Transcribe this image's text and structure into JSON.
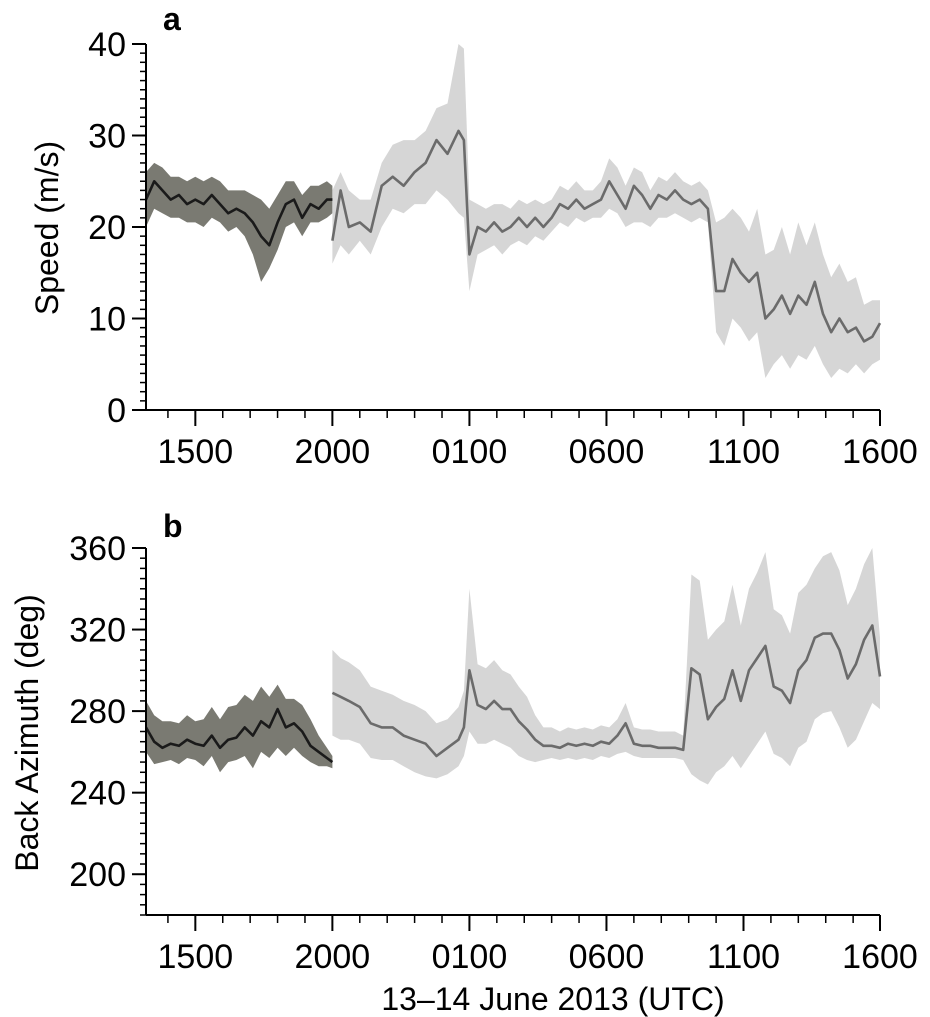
{
  "figure": {
    "xlabel": "13–14 June 2013 (UTC)"
  },
  "chart_data": [
    {
      "type": "line",
      "panel_label": "a",
      "ylabel": "Speed (m/s)",
      "ylim": [
        0,
        40
      ],
      "yticks": [
        0,
        10,
        20,
        30,
        40
      ],
      "xlim": [
        13.2,
        39.98
      ],
      "xticks": [
        15,
        20,
        25,
        30,
        35,
        40
      ],
      "xtick_labels": [
        "1500",
        "2000",
        "0100",
        "0600",
        "1100",
        "1600"
      ],
      "x_units": "hours since 00:00 UTC 13 June 2013",
      "grid": false,
      "series": [
        {
          "color": "#1a1a1a",
          "band_color": "#7a7a72",
          "x": [
            13.2,
            13.5,
            13.8,
            14.1,
            14.4,
            14.7,
            15.0,
            15.3,
            15.6,
            15.9,
            16.2,
            16.5,
            16.8,
            17.1,
            17.4,
            17.7,
            18.0,
            18.3,
            18.6,
            18.9,
            19.2,
            19.5,
            19.8,
            20.0
          ],
          "y": [
            23.0,
            25.0,
            24.0,
            23.0,
            23.5,
            22.5,
            23.0,
            22.5,
            23.5,
            22.5,
            21.5,
            22.0,
            21.5,
            20.5,
            19.0,
            18.0,
            20.5,
            22.5,
            23.0,
            21.0,
            22.5,
            22.0,
            23.0,
            23.0
          ],
          "lower": [
            20.0,
            22.0,
            21.5,
            21.0,
            21.0,
            20.5,
            20.5,
            20.0,
            21.0,
            20.5,
            19.5,
            20.0,
            19.0,
            17.0,
            14.0,
            15.5,
            17.5,
            20.0,
            20.5,
            19.0,
            20.5,
            20.5,
            21.0,
            21.5
          ],
          "upper": [
            26.0,
            27.0,
            26.5,
            25.5,
            25.5,
            25.0,
            25.5,
            25.0,
            25.5,
            25.0,
            24.0,
            24.0,
            24.0,
            23.5,
            23.0,
            22.0,
            23.5,
            25.0,
            25.0,
            23.5,
            24.5,
            24.5,
            25.0,
            24.5
          ]
        },
        {
          "color": "#6b6b6b",
          "band_color": "#d6d6d6",
          "x": [
            20.0,
            20.3,
            20.6,
            21.0,
            21.4,
            21.8,
            22.2,
            22.6,
            23.0,
            23.4,
            23.8,
            24.2,
            24.6,
            24.8,
            25.0,
            25.3,
            25.6,
            25.9,
            26.2,
            26.5,
            26.8,
            27.1,
            27.4,
            27.7,
            28.0,
            28.3,
            28.6,
            28.9,
            29.2,
            29.5,
            29.8,
            30.1,
            30.4,
            30.7,
            31.0,
            31.3,
            31.6,
            31.9,
            32.2,
            32.5,
            32.8,
            33.1,
            33.4,
            33.7,
            34.0,
            34.3,
            34.6,
            34.9,
            35.2,
            35.5,
            35.8,
            36.1,
            36.4,
            36.7,
            37.0,
            37.3,
            37.6,
            37.9,
            38.2,
            38.5,
            38.8,
            39.1,
            39.4,
            39.7,
            39.98
          ],
          "y": [
            18.5,
            24.0,
            20.0,
            20.5,
            19.5,
            24.5,
            25.5,
            24.5,
            26.0,
            27.0,
            29.5,
            28.0,
            30.5,
            29.5,
            17.0,
            20.0,
            19.5,
            20.5,
            19.5,
            20.0,
            21.0,
            20.0,
            21.0,
            20.0,
            21.0,
            22.5,
            22.0,
            23.0,
            22.0,
            22.5,
            23.0,
            25.0,
            23.5,
            22.0,
            24.5,
            23.5,
            22.0,
            23.5,
            23.0,
            24.0,
            23.0,
            22.5,
            23.0,
            22.0,
            13.0,
            13.0,
            16.5,
            15.0,
            14.0,
            15.0,
            10.0,
            11.0,
            12.5,
            10.5,
            12.5,
            11.5,
            14.0,
            10.5,
            8.5,
            10.0,
            8.5,
            9.0,
            7.5,
            8.0,
            9.5
          ],
          "lower": [
            16.0,
            18.0,
            17.0,
            18.5,
            17.0,
            20.0,
            22.0,
            21.5,
            22.5,
            22.5,
            24.0,
            23.0,
            21.5,
            21.0,
            13.0,
            17.0,
            17.5,
            18.0,
            17.0,
            18.0,
            18.5,
            18.0,
            19.0,
            18.5,
            19.5,
            20.5,
            20.0,
            21.0,
            20.5,
            21.0,
            21.0,
            22.0,
            21.5,
            20.0,
            20.5,
            20.5,
            20.0,
            21.0,
            21.0,
            21.5,
            21.0,
            20.5,
            21.0,
            20.5,
            8.5,
            7.0,
            10.0,
            9.0,
            7.5,
            8.5,
            3.5,
            5.0,
            6.0,
            4.5,
            6.0,
            5.5,
            7.0,
            5.0,
            3.5,
            4.5,
            4.0,
            5.0,
            4.0,
            5.0,
            5.5
          ],
          "upper": [
            24.0,
            26.0,
            24.0,
            23.0,
            23.0,
            27.0,
            29.0,
            29.5,
            29.5,
            30.5,
            33.0,
            33.5,
            40.0,
            39.5,
            23.0,
            22.5,
            22.0,
            22.5,
            22.5,
            22.0,
            23.0,
            22.5,
            23.0,
            22.5,
            23.0,
            24.5,
            24.0,
            25.0,
            24.0,
            24.0,
            25.0,
            27.5,
            26.5,
            24.5,
            26.5,
            26.0,
            24.0,
            25.5,
            25.0,
            26.0,
            25.0,
            24.5,
            25.0,
            24.0,
            20.5,
            21.0,
            22.0,
            21.0,
            19.5,
            22.0,
            17.0,
            17.5,
            20.0,
            17.0,
            20.5,
            18.0,
            20.5,
            17.0,
            14.5,
            16.0,
            14.0,
            14.5,
            11.5,
            12.0,
            12.0
          ]
        }
      ]
    },
    {
      "type": "line",
      "panel_label": "b",
      "ylabel": "Back Azimuth (deg)",
      "ylim": [
        180,
        360
      ],
      "yticks": [
        200,
        240,
        280,
        320,
        360
      ],
      "xlim": [
        13.2,
        39.98
      ],
      "xticks": [
        15,
        20,
        25,
        30,
        35,
        40
      ],
      "xtick_labels": [
        "1500",
        "2000",
        "0100",
        "0600",
        "1100",
        "1600"
      ],
      "x_units": "hours since 00:00 UTC 13 June 2013",
      "grid": false,
      "series": [
        {
          "color": "#1a1a1a",
          "band_color": "#7a7a72",
          "x": [
            13.2,
            13.5,
            13.8,
            14.1,
            14.4,
            14.7,
            15.0,
            15.3,
            15.6,
            15.9,
            16.2,
            16.5,
            16.8,
            17.1,
            17.4,
            17.7,
            18.0,
            18.3,
            18.6,
            18.9,
            19.2,
            19.5,
            19.8,
            20.0
          ],
          "y": [
            272,
            265,
            262,
            264,
            263,
            266,
            264,
            263,
            268,
            262,
            266,
            267,
            272,
            268,
            275,
            272,
            281,
            272,
            274,
            270,
            263,
            260,
            257,
            255
          ],
          "lower": [
            260,
            254,
            255,
            256,
            254,
            257,
            256,
            253,
            258,
            250,
            255,
            256,
            258,
            252,
            260,
            257,
            262,
            258,
            262,
            258,
            255,
            253,
            253,
            252
          ],
          "upper": [
            285,
            278,
            275,
            275,
            274,
            278,
            275,
            276,
            282,
            276,
            282,
            283,
            288,
            285,
            292,
            287,
            293,
            286,
            286,
            283,
            276,
            268,
            262,
            258
          ]
        },
        {
          "color": "#6b6b6b",
          "band_color": "#d6d6d6",
          "x": [
            20.0,
            20.3,
            20.6,
            21.0,
            21.4,
            21.8,
            22.2,
            22.6,
            23.0,
            23.4,
            23.8,
            24.2,
            24.6,
            24.8,
            25.0,
            25.3,
            25.6,
            25.9,
            26.2,
            26.5,
            26.8,
            27.1,
            27.4,
            27.7,
            28.0,
            28.3,
            28.6,
            28.9,
            29.2,
            29.5,
            29.8,
            30.1,
            30.4,
            30.7,
            31.0,
            31.3,
            31.6,
            31.9,
            32.2,
            32.5,
            32.8,
            33.1,
            33.4,
            33.7,
            34.0,
            34.3,
            34.6,
            34.9,
            35.2,
            35.5,
            35.8,
            36.1,
            36.4,
            36.7,
            37.0,
            37.3,
            37.6,
            37.9,
            38.2,
            38.5,
            38.8,
            39.1,
            39.4,
            39.7,
            39.98
          ],
          "y": [
            289,
            287,
            285,
            282,
            274,
            272,
            272,
            268,
            266,
            264,
            258,
            262,
            266,
            272,
            300,
            283,
            281,
            285,
            281,
            281,
            275,
            271,
            266,
            263,
            263,
            262,
            264,
            263,
            264,
            263,
            265,
            264,
            268,
            274,
            264,
            263,
            263,
            262,
            262,
            262,
            261,
            301,
            298,
            276,
            282,
            286,
            300,
            285,
            300,
            306,
            312,
            292,
            290,
            284,
            300,
            305,
            316,
            318,
            318,
            310,
            296,
            303,
            315,
            322,
            297
          ],
          "lower": [
            268,
            266,
            266,
            264,
            257,
            256,
            256,
            253,
            250,
            248,
            247,
            249,
            253,
            258,
            270,
            264,
            264,
            266,
            264,
            262,
            258,
            256,
            255,
            256,
            257,
            256,
            257,
            256,
            257,
            256,
            258,
            257,
            259,
            260,
            258,
            257,
            257,
            257,
            257,
            257,
            256,
            249,
            246,
            244,
            250,
            253,
            258,
            252,
            258,
            264,
            270,
            259,
            257,
            253,
            262,
            265,
            276,
            279,
            280,
            272,
            262,
            266,
            275,
            284,
            281
          ],
          "upper": [
            310,
            306,
            304,
            300,
            292,
            290,
            288,
            285,
            283,
            280,
            274,
            276,
            282,
            290,
            340,
            303,
            301,
            305,
            300,
            298,
            292,
            287,
            278,
            272,
            272,
            270,
            272,
            271,
            272,
            271,
            273,
            272,
            276,
            284,
            272,
            271,
            271,
            270,
            270,
            270,
            268,
            347,
            344,
            315,
            320,
            324,
            342,
            322,
            340,
            348,
            358,
            330,
            327,
            318,
            338,
            342,
            350,
            356,
            358,
            349,
            332,
            340,
            352,
            360,
            316
          ]
        }
      ]
    }
  ]
}
